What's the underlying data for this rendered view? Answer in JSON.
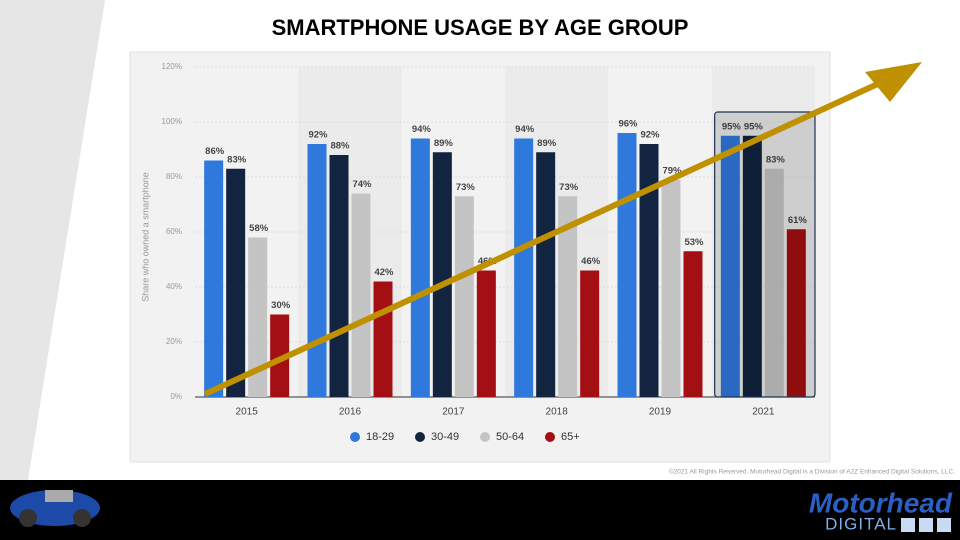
{
  "chart_data": {
    "type": "bar",
    "title": "SMARTPHONE USAGE BY AGE GROUP",
    "y_label": "Share who owned a smartphone",
    "categories": [
      "2015",
      "2016",
      "2017",
      "2018",
      "2019",
      "2021"
    ],
    "series": [
      {
        "name": "18-29",
        "color": "#2f78dc",
        "values": [
          86,
          92,
          94,
          94,
          96,
          95
        ],
        "value_labels": [
          "86%",
          "92%",
          "94%",
          "94%",
          "96%",
          "95%"
        ]
      },
      {
        "name": "30-49",
        "color": "#12243f",
        "values": [
          83,
          88,
          89,
          89,
          92,
          95
        ],
        "value_labels": [
          "83%",
          "88%",
          "89%",
          "89%",
          "92%",
          "95%"
        ]
      },
      {
        "name": "50-64",
        "color": "#c4c4c4",
        "values": [
          58,
          74,
          73,
          73,
          79,
          83
        ],
        "value_labels": [
          "58%",
          "74%",
          "73%",
          "73%",
          "79%",
          "83%"
        ]
      },
      {
        "name": "65+",
        "color": "#a30f12",
        "values": [
          30,
          42,
          46,
          46,
          53,
          61
        ],
        "value_labels": [
          "30%",
          "42%",
          "46%",
          "46%",
          "53%",
          "61%"
        ]
      }
    ],
    "ylim": [
      0,
      120
    ],
    "yticks": [
      {
        "value": 0,
        "label": "0%"
      },
      {
        "value": 20,
        "label": "20%"
      },
      {
        "value": 40,
        "label": "40%"
      },
      {
        "value": 60,
        "label": "60%"
      },
      {
        "value": 80,
        "label": "80%"
      },
      {
        "value": 100,
        "label": "100%"
      },
      {
        "value": 120,
        "label": "120%"
      }
    ],
    "grid": true,
    "legend": "bottom"
  },
  "footer": {
    "copyright": "©2021 All Rights Reserved. Motorhead Digital is a Division of A2Z Enhanced Digital Solutions, LLC.",
    "logo_top": "Motorhead",
    "logo_bottom": "DIGITAL"
  }
}
